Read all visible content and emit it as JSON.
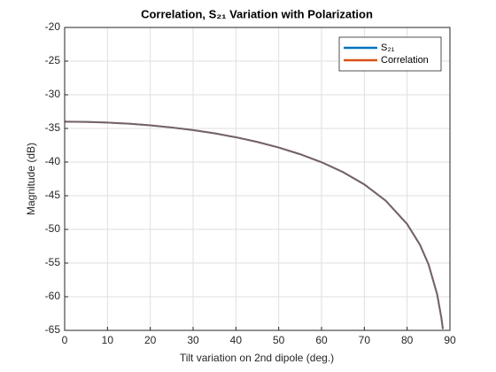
{
  "chart_data": {
    "type": "line",
    "title": "Correlation,  S₂₁  Variation  with  Polarization",
    "x_label": "Tilt variation on 2nd dipole (deg.)",
    "y_label": "Magnitude (dB)",
    "x": [
      0,
      5,
      10,
      15,
      20,
      25,
      30,
      35,
      40,
      45,
      50,
      55,
      60,
      65,
      70,
      75,
      80,
      83,
      85,
      87,
      88,
      88.35
    ],
    "series": [
      {
        "name": "S₂₁",
        "color": "#0072bd",
        "values": [
          -34,
          -34.03,
          -34.13,
          -34.3,
          -34.54,
          -34.86,
          -35.25,
          -35.73,
          -36.31,
          -37.01,
          -37.84,
          -38.83,
          -40.02,
          -41.48,
          -43.32,
          -45.74,
          -49.21,
          -52.28,
          -55.19,
          -59.62,
          -63.14,
          -64.81
        ]
      },
      {
        "name": "Correlation",
        "color": "#d95319",
        "values": [
          -34,
          -34.03,
          -34.13,
          -34.3,
          -34.54,
          -34.86,
          -35.25,
          -35.73,
          -36.31,
          -37.01,
          -37.84,
          -38.83,
          -40.02,
          -41.48,
          -43.32,
          -45.74,
          -49.21,
          -52.28,
          -55.19,
          -59.62,
          -63.14,
          -64.81
        ]
      }
    ],
    "xlim": [
      0,
      90
    ],
    "xticks": [
      0,
      10,
      20,
      30,
      40,
      50,
      60,
      70,
      80,
      90
    ],
    "ylim": [
      -65,
      -20
    ],
    "yticks": [
      -65,
      -60,
      -55,
      -50,
      -45,
      -40,
      -35,
      -30,
      -25,
      -20
    ],
    "grid": true,
    "legend": "upper-right"
  }
}
